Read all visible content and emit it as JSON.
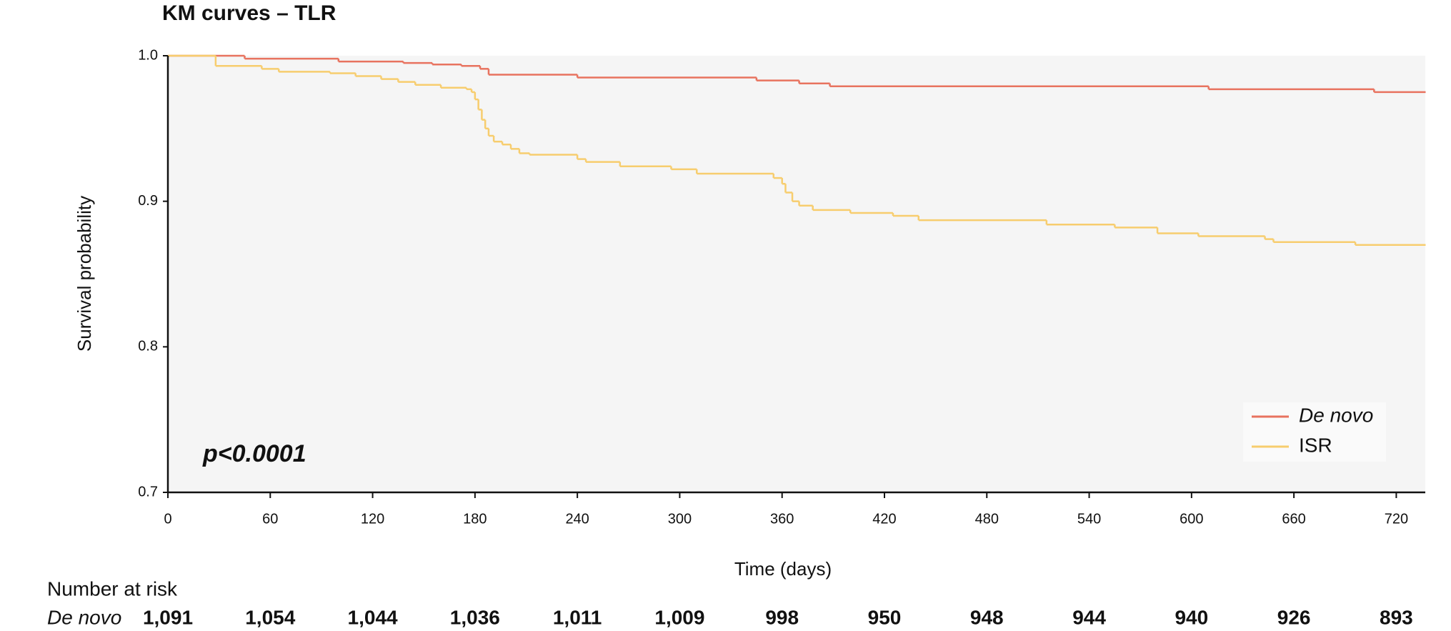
{
  "chart_data": {
    "type": "step",
    "title": "KM curves – TLR",
    "x_label": "Time (days)",
    "y_label": "Survival probability",
    "annotation": "p<0.0001",
    "xlim": [
      0,
      737
    ],
    "ylim": [
      0.7,
      1.0
    ],
    "xticks": [
      0,
      60,
      120,
      180,
      240,
      300,
      360,
      420,
      480,
      540,
      600,
      660,
      720
    ],
    "yticks": [
      0.7,
      0.8,
      0.9,
      {
        "value": 1,
        "label": "1.0"
      }
    ],
    "legend": "lower right",
    "series": [
      {
        "name": "De novo",
        "color": "#e8735f",
        "x": [
          0,
          45,
          100,
          138,
          155,
          172,
          183,
          188,
          240,
          345,
          370,
          388,
          610,
          707,
          737
        ],
        "values": [
          1.0,
          0.998,
          0.996,
          0.995,
          0.994,
          0.993,
          0.991,
          0.987,
          0.985,
          0.983,
          0.981,
          0.979,
          0.977,
          0.975,
          0.975
        ]
      },
      {
        "name": "ISR",
        "color": "#f7cd6e",
        "x": [
          0,
          28,
          55,
          65,
          95,
          110,
          125,
          135,
          145,
          160,
          175,
          178,
          180,
          182,
          184,
          186,
          188,
          191,
          196,
          201,
          206,
          212,
          240,
          245,
          265,
          295,
          310,
          355,
          360,
          362,
          366,
          370,
          378,
          400,
          425,
          440,
          515,
          555,
          580,
          604,
          643,
          648,
          696,
          737
        ],
        "values": [
          1.0,
          0.993,
          0.991,
          0.989,
          0.988,
          0.986,
          0.984,
          0.982,
          0.98,
          0.978,
          0.977,
          0.975,
          0.97,
          0.963,
          0.956,
          0.95,
          0.945,
          0.941,
          0.939,
          0.936,
          0.933,
          0.932,
          0.929,
          0.927,
          0.924,
          0.922,
          0.919,
          0.916,
          0.912,
          0.906,
          0.9,
          0.897,
          0.894,
          0.892,
          0.89,
          0.887,
          0.884,
          0.882,
          0.878,
          0.876,
          0.874,
          0.872,
          0.87,
          0.87
        ]
      }
    ]
  },
  "risk_table": {
    "title": "Number at risk",
    "rows": [
      {
        "label": "De novo",
        "values": [
          "1,091",
          "1,054",
          "1,044",
          "1,036",
          "1,011",
          "1,009",
          "998",
          "950",
          "948",
          "944",
          "940",
          "926",
          "893"
        ]
      }
    ]
  }
}
